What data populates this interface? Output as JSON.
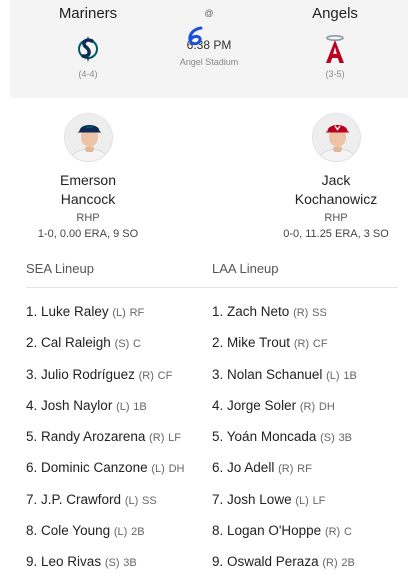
{
  "game": {
    "at_sign": "@",
    "time": "6:38 PM",
    "venue": "Angel Stadium",
    "away": {
      "name": "Mariners",
      "record": "(4-4)",
      "logo_icon": "mariners-logo-icon",
      "color": "#0c2c56",
      "accent": "#005c5c"
    },
    "home": {
      "name": "Angels",
      "record": "(3-5)",
      "logo_icon": "angels-logo-icon",
      "color": "#ba0021",
      "accent": "#003263"
    }
  },
  "pitchers": {
    "away": {
      "name_line1": "Emerson",
      "name_line2": "Hancock",
      "position": "RHP",
      "stats": "1-0, 0.00 ERA, 9 SO",
      "cap_color": "#0c2c56"
    },
    "home": {
      "name_line1": "Jack",
      "name_line2": "Kochanowicz",
      "position": "RHP",
      "stats": "0-0, 11.25 ERA, 3 SO",
      "cap_color": "#ba0021"
    }
  },
  "lineups": {
    "away": {
      "title": "SEA Lineup",
      "players": [
        {
          "order": "1.",
          "name": "Luke Raley",
          "hand": "(L)",
          "pos": "RF"
        },
        {
          "order": "2.",
          "name": "Cal Raleigh",
          "hand": "(S)",
          "pos": "C"
        },
        {
          "order": "3.",
          "name": "Julio Rodríguez",
          "hand": "(R)",
          "pos": "CF"
        },
        {
          "order": "4.",
          "name": "Josh Naylor",
          "hand": "(L)",
          "pos": "1B"
        },
        {
          "order": "5.",
          "name": "Randy Arozarena",
          "hand": "(R)",
          "pos": "LF"
        },
        {
          "order": "6.",
          "name": "Dominic Canzone",
          "hand": "(L)",
          "pos": "DH"
        },
        {
          "order": "7.",
          "name": "J.P. Crawford",
          "hand": "(L)",
          "pos": "SS"
        },
        {
          "order": "8.",
          "name": "Cole Young",
          "hand": "(L)",
          "pos": "2B"
        },
        {
          "order": "9.",
          "name": "Leo Rivas",
          "hand": "(S)",
          "pos": "3B"
        }
      ]
    },
    "home": {
      "title": "LAA Lineup",
      "players": [
        {
          "order": "1.",
          "name": "Zach Neto",
          "hand": "(R)",
          "pos": "SS"
        },
        {
          "order": "2.",
          "name": "Mike Trout",
          "hand": "(R)",
          "pos": "CF"
        },
        {
          "order": "3.",
          "name": "Nolan Schanuel",
          "hand": "(L)",
          "pos": "1B"
        },
        {
          "order": "4.",
          "name": "Jorge Soler",
          "hand": "(R)",
          "pos": "DH"
        },
        {
          "order": "5.",
          "name": "Yoán Moncada",
          "hand": "(S)",
          "pos": "3B"
        },
        {
          "order": "6.",
          "name": "Jo Adell",
          "hand": "(R)",
          "pos": "RF"
        },
        {
          "order": "7.",
          "name": "Josh Lowe",
          "hand": "(L)",
          "pos": "LF"
        },
        {
          "order": "8.",
          "name": "Logan O'Hoppe",
          "hand": "(R)",
          "pos": "C"
        },
        {
          "order": "9.",
          "name": "Oswald Peraza",
          "hand": "(R)",
          "pos": "2B"
        }
      ]
    }
  }
}
